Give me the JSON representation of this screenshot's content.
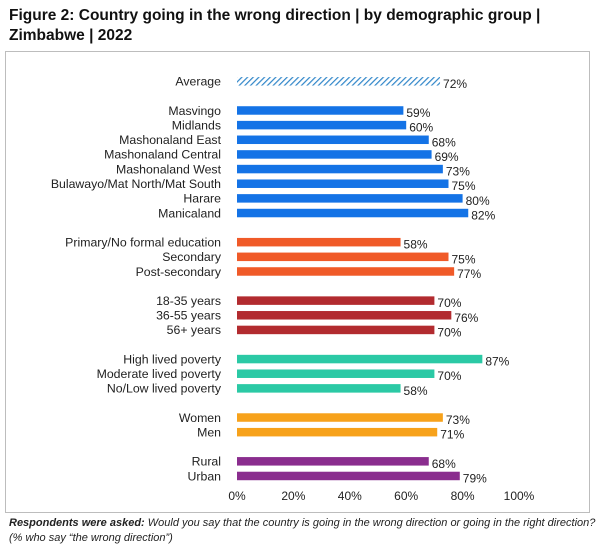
{
  "header": {
    "title_bold": "Figure 2: Country going in the wrong direction",
    "title_rest": " | by demographic group | Zimbabwe | 2022"
  },
  "chart_data": {
    "type": "bar",
    "orientation": "horizontal",
    "xlim": [
      0,
      100
    ],
    "x_ticks": [
      "0%",
      "20%",
      "40%",
      "60%",
      "80%",
      "100%"
    ],
    "grid": false,
    "groups": [
      {
        "color": "#3b9bd6",
        "pattern": "hatched",
        "items": [
          {
            "label": "Average",
            "value": 72
          }
        ]
      },
      {
        "color": "#1473e6",
        "items": [
          {
            "label": "Masvingo",
            "value": 59
          },
          {
            "label": "Midlands",
            "value": 60
          },
          {
            "label": "Mashonaland East",
            "value": 68
          },
          {
            "label": "Mashonaland Central",
            "value": 69
          },
          {
            "label": "Mashonaland West",
            "value": 73
          },
          {
            "label": "Bulawayo/Mat North/Mat South",
            "value": 75
          },
          {
            "label": "Harare",
            "value": 80
          },
          {
            "label": "Manicaland",
            "value": 82
          }
        ]
      },
      {
        "color": "#f05a28",
        "items": [
          {
            "label": "Primary/No formal education",
            "value": 58
          },
          {
            "label": "Secondary",
            "value": 75
          },
          {
            "label": "Post-secondary",
            "value": 77
          }
        ]
      },
      {
        "color": "#b22b2f",
        "items": [
          {
            "label": "18-35 years",
            "value": 70
          },
          {
            "label": "36-55 years",
            "value": 76
          },
          {
            "label": "56+ years",
            "value": 70
          }
        ]
      },
      {
        "color": "#2bc9a5",
        "items": [
          {
            "label": "High lived poverty",
            "value": 87
          },
          {
            "label": "Moderate lived poverty",
            "value": 70
          },
          {
            "label": "No/Low lived poverty",
            "value": 58
          }
        ]
      },
      {
        "color": "#f7a21b",
        "items": [
          {
            "label": "Women",
            "value": 73
          },
          {
            "label": "Men",
            "value": 71
          }
        ]
      },
      {
        "color": "#8a2d8e",
        "items": [
          {
            "label": "Rural",
            "value": 68
          },
          {
            "label": "Urban",
            "value": 79
          }
        ]
      }
    ]
  },
  "footnote": {
    "label": "Respondents were asked:",
    "text": " Would you say that the country is going in the wrong direction or going in the right direction? (% who say “the wrong direction”)"
  }
}
